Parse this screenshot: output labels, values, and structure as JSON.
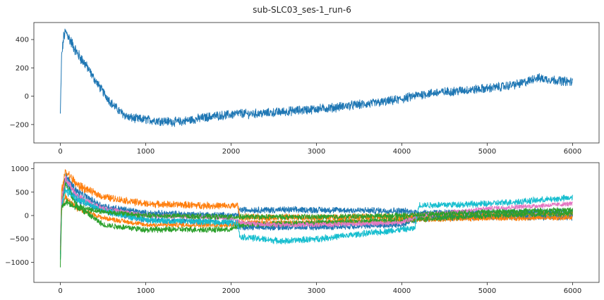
{
  "figure": {
    "title": "sub-SLC03_ses-1_run-6"
  },
  "chart_data": [
    {
      "type": "line",
      "title": "",
      "xlabel": "",
      "ylabel": "",
      "xlim": [
        -310,
        6310
      ],
      "ylim": [
        -330,
        520
      ],
      "xticks": [
        0,
        1000,
        2000,
        3000,
        4000,
        5000,
        6000
      ],
      "yticks": [
        -200,
        0,
        200,
        400
      ],
      "grid": false,
      "legend": "none",
      "series": [
        {
          "color": "#1f77b4",
          "noise": 28,
          "x": [
            0,
            15,
            40,
            60,
            80,
            120,
            200,
            300,
            400,
            500,
            600,
            700,
            800,
            900,
            1000,
            1100,
            1200,
            1300,
            1400,
            1500,
            1600,
            1700,
            1800,
            1900,
            2000,
            2100,
            2200,
            2400,
            2600,
            2800,
            3000,
            3200,
            3400,
            3600,
            3800,
            4000,
            4200,
            4400,
            4600,
            4800,
            5000,
            5200,
            5400,
            5500,
            5550,
            5700,
            5850,
            6000
          ],
          "y": [
            -130,
            280,
            420,
            450,
            440,
            390,
            300,
            220,
            120,
            30,
            -50,
            -110,
            -150,
            -160,
            -165,
            -170,
            -175,
            -180,
            -180,
            -170,
            -160,
            -150,
            -140,
            -135,
            -130,
            -120,
            -125,
            -120,
            -110,
            -100,
            -90,
            -80,
            -65,
            -55,
            -40,
            -20,
            10,
            25,
            35,
            45,
            55,
            70,
            90,
            110,
            130,
            120,
            110,
            100
          ]
        }
      ]
    },
    {
      "type": "line",
      "title": "",
      "xlabel": "",
      "ylabel": "",
      "xlim": [
        -310,
        6310
      ],
      "ylim": [
        -1430,
        1130
      ],
      "xticks": [
        0,
        1000,
        2000,
        3000,
        4000,
        5000,
        6000
      ],
      "yticks": [
        -1000,
        -500,
        0,
        500,
        1000
      ],
      "grid": false,
      "legend": "none",
      "series": [
        {
          "color": "#1f77b4",
          "noise": 60,
          "x": [
            0,
            15,
            60,
            200,
            500,
            1000,
            2000,
            2080,
            2100,
            3000,
            4000,
            4200,
            5000,
            6000
          ],
          "y": [
            -900,
            400,
            850,
            500,
            200,
            50,
            0,
            0,
            120,
            120,
            100,
            60,
            60,
            80
          ]
        },
        {
          "color": "#ff7f0e",
          "noise": 65,
          "x": [
            0,
            15,
            60,
            200,
            500,
            1000,
            2000,
            2080,
            2100,
            3000,
            4000,
            5000,
            6000
          ],
          "y": [
            -700,
            500,
            950,
            650,
            400,
            250,
            200,
            220,
            -40,
            -40,
            -30,
            0,
            20
          ]
        },
        {
          "color": "#1f77b4",
          "noise": 55,
          "x": [
            0,
            15,
            60,
            200,
            500,
            1000,
            2000,
            2100,
            3000,
            4000,
            4200,
            5000,
            6000
          ],
          "y": [
            -800,
            300,
            700,
            350,
            100,
            -100,
            -150,
            -250,
            -250,
            -200,
            -60,
            -30,
            -40
          ]
        },
        {
          "color": "#ff7f0e",
          "noise": 45,
          "x": [
            0,
            15,
            60,
            200,
            500,
            1000,
            2000,
            2100,
            3000,
            4000,
            5000,
            6000
          ],
          "y": [
            -700,
            150,
            400,
            150,
            -50,
            -200,
            -200,
            -150,
            -150,
            -100,
            -60,
            -50
          ]
        },
        {
          "color": "#2ca02c",
          "noise": 55,
          "x": [
            0,
            15,
            60,
            200,
            500,
            1000,
            2000,
            2100,
            3000,
            4000,
            5000,
            6000
          ],
          "y": [
            -1100,
            200,
            700,
            200,
            -200,
            -300,
            -300,
            -200,
            -150,
            -100,
            0,
            50
          ]
        },
        {
          "color": "#e377c2",
          "noise": 45,
          "x": [
            0,
            15,
            60,
            200,
            500,
            1000,
            2000,
            2100,
            2500,
            3000,
            4000,
            4200,
            5000,
            6000
          ],
          "y": [
            -600,
            300,
            800,
            400,
            150,
            0,
            -50,
            -150,
            -200,
            -200,
            -150,
            0,
            150,
            250
          ]
        },
        {
          "color": "#17becf",
          "noise": 60,
          "x": [
            0,
            15,
            60,
            200,
            500,
            1000,
            2000,
            2080,
            2100,
            2600,
            3000,
            4000,
            4150,
            4200,
            5000,
            6000
          ],
          "y": [
            -900,
            200,
            550,
            350,
            100,
            -100,
            -150,
            -150,
            -450,
            -550,
            -500,
            -300,
            -280,
            220,
            250,
            380
          ]
        },
        {
          "color": "#2ca02c",
          "noise": 50,
          "x": [
            0,
            15,
            60,
            200,
            500,
            1000,
            2000,
            2100,
            3000,
            4000,
            5000,
            6000
          ],
          "y": [
            -1000,
            150,
            300,
            180,
            80,
            0,
            -30,
            -30,
            -30,
            0,
            80,
            120
          ]
        }
      ]
    }
  ]
}
